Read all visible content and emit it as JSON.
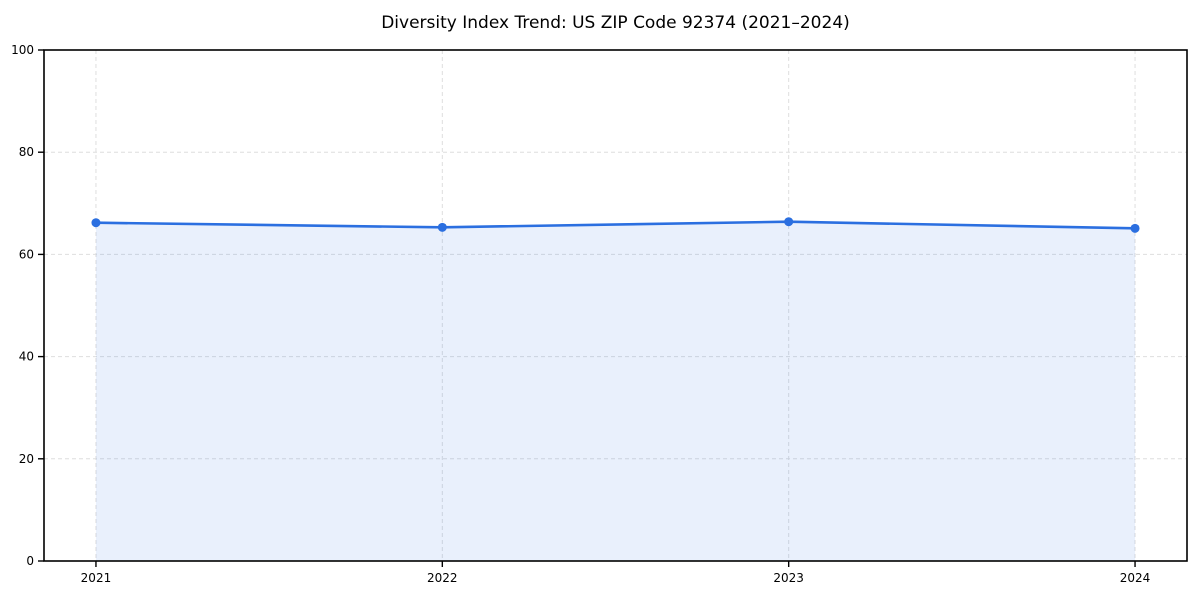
{
  "chart_data": {
    "type": "area",
    "title": "Diversity Index Trend: US ZIP Code 92374 (2021–2024)",
    "xlabel": "",
    "ylabel": "",
    "categories": [
      "2021",
      "2022",
      "2023",
      "2024"
    ],
    "series": [
      {
        "name": "Diversity Index",
        "values": [
          66.2,
          65.3,
          66.4,
          65.1
        ]
      }
    ],
    "ylim": [
      0,
      100
    ],
    "yticks": [
      0,
      20,
      40,
      60,
      80,
      100
    ],
    "grid": "dashed, both axes",
    "legend": "none",
    "colors": {
      "line": "#2b6fe0",
      "marker": "#2b6fe0",
      "fill": "#2b6fe0",
      "fill_opacity": "0.10",
      "grid": "#dedede",
      "frame": "#000000",
      "background": "#ffffff",
      "text": "#000000"
    }
  }
}
